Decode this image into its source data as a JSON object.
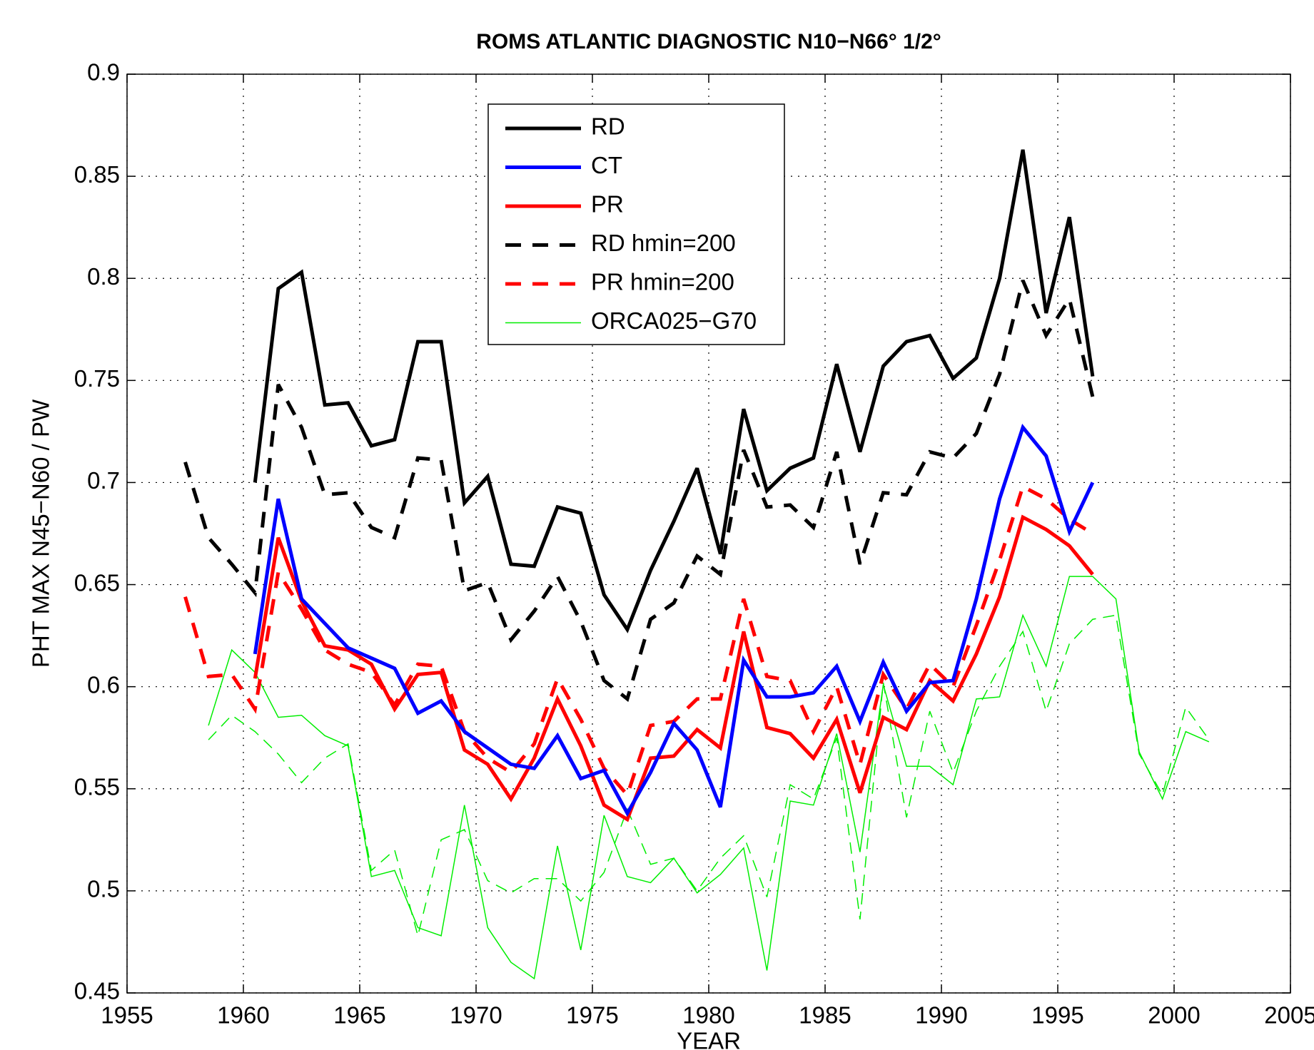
{
  "chart_data": {
    "type": "line",
    "title": "ROMS ATLANTIC DIAGNOSTIC N10−N66° 1/2°",
    "x_label": "YEAR",
    "y_label": "PHT MAX N45−N60 / PW",
    "x": [
      1957.5,
      1958.5,
      1959.5,
      1960.5,
      1961.5,
      1962.5,
      1963.5,
      1964.5,
      1965.5,
      1966.5,
      1967.5,
      1968.5,
      1969.5,
      1970.5,
      1971.5,
      1972.5,
      1973.5,
      1974.5,
      1975.5,
      1976.5,
      1977.5,
      1978.5,
      1979.5,
      1980.5,
      1981.5,
      1982.5,
      1983.5,
      1984.5,
      1985.5,
      1986.5,
      1987.5,
      1988.5,
      1989.5,
      1990.5,
      1991.5,
      1992.5,
      1993.5,
      1994.5,
      1995.5,
      1996.5,
      1997.5,
      1998.5,
      1999.5,
      2000.5,
      2001.5
    ],
    "series": [
      {
        "name": "RD",
        "color": "#000000",
        "linestyle": "solid",
        "linewidth": 5,
        "values": [
          null,
          null,
          null,
          0.7,
          0.795,
          0.803,
          0.738,
          0.739,
          0.718,
          0.721,
          0.769,
          0.769,
          0.69,
          0.703,
          0.66,
          0.659,
          0.688,
          0.685,
          0.645,
          0.628,
          0.657,
          0.681,
          0.707,
          0.665,
          0.736,
          0.696,
          0.707,
          0.712,
          0.758,
          0.715,
          0.757,
          0.769,
          0.772,
          0.751,
          0.761,
          0.8,
          0.863,
          0.783,
          0.83,
          0.752,
          null,
          null,
          null,
          null,
          null
        ]
      },
      {
        "name": "CT",
        "color": "#0000ff",
        "linestyle": "solid",
        "linewidth": 5,
        "values": [
          null,
          null,
          null,
          0.616,
          0.692,
          0.643,
          0.631,
          0.619,
          0.614,
          0.609,
          0.587,
          0.593,
          0.578,
          0.57,
          0.562,
          0.56,
          0.576,
          0.555,
          0.559,
          0.538,
          0.558,
          0.582,
          0.569,
          0.541,
          0.613,
          0.595,
          0.595,
          0.597,
          0.61,
          0.583,
          0.612,
          0.588,
          0.602,
          0.603,
          0.643,
          0.692,
          0.727,
          0.713,
          0.676,
          0.7,
          null,
          null,
          null,
          null,
          null
        ]
      },
      {
        "name": "PR",
        "color": "#ff0000",
        "linestyle": "solid",
        "linewidth": 5,
        "values": [
          null,
          null,
          null,
          0.604,
          0.673,
          0.642,
          0.62,
          0.618,
          0.611,
          0.589,
          0.606,
          0.607,
          0.569,
          0.562,
          0.545,
          0.565,
          0.594,
          0.571,
          0.542,
          0.535,
          0.565,
          0.566,
          0.579,
          0.57,
          0.627,
          0.58,
          0.577,
          0.565,
          0.584,
          0.548,
          0.585,
          0.579,
          0.603,
          0.593,
          0.616,
          0.644,
          0.683,
          0.677,
          0.669,
          0.655,
          null,
          null,
          null,
          null,
          null
        ]
      },
      {
        "name": "RD hmin=200",
        "color": "#000000",
        "linestyle": "dashed",
        "linewidth": 5,
        "values": [
          0.71,
          0.673,
          0.66,
          0.646,
          0.748,
          0.727,
          0.694,
          0.695,
          0.678,
          0.673,
          0.712,
          0.711,
          0.647,
          0.651,
          0.623,
          0.637,
          0.654,
          0.632,
          0.603,
          0.594,
          0.633,
          0.641,
          0.664,
          0.655,
          0.716,
          0.688,
          0.689,
          0.678,
          0.715,
          0.66,
          0.695,
          0.694,
          0.715,
          0.712,
          0.724,
          0.753,
          0.799,
          0.772,
          0.79,
          0.742,
          null,
          null,
          null,
          null,
          null
        ]
      },
      {
        "name": "PR hmin=200",
        "color": "#ff0000",
        "linestyle": "dashed",
        "linewidth": 5,
        "values": [
          0.644,
          0.605,
          0.606,
          0.589,
          0.656,
          0.638,
          0.618,
          0.611,
          0.607,
          0.591,
          0.611,
          0.61,
          0.578,
          0.565,
          0.558,
          0.572,
          0.604,
          0.584,
          0.56,
          0.547,
          0.581,
          0.583,
          0.594,
          0.594,
          0.643,
          0.605,
          0.603,
          0.578,
          0.6,
          0.562,
          0.606,
          0.589,
          0.611,
          0.6,
          0.63,
          0.662,
          0.698,
          0.692,
          0.682,
          0.675,
          null,
          null,
          null,
          null,
          null
        ]
      },
      {
        "name": "ORCA025−G70",
        "color": "#00ee00",
        "linestyle": "solid",
        "linewidth": 1.5,
        "values": [
          null,
          0.581,
          0.618,
          0.607,
          0.585,
          0.586,
          0.576,
          0.571,
          0.507,
          0.51,
          0.482,
          0.478,
          0.542,
          0.482,
          0.465,
          0.457,
          0.522,
          0.471,
          0.537,
          0.507,
          0.504,
          0.516,
          0.499,
          0.508,
          0.521,
          0.461,
          0.544,
          0.542,
          0.577,
          0.519,
          0.601,
          0.561,
          0.561,
          0.552,
          0.594,
          0.595,
          0.635,
          0.61,
          0.654,
          0.654,
          0.643,
          0.568,
          0.545,
          0.578,
          0.573
        ]
      },
      {
        "color": "#00ee00",
        "linestyle": "dashed",
        "linewidth": 1.5,
        "values": [
          null,
          0.574,
          0.586,
          0.578,
          0.567,
          0.553,
          0.565,
          0.572,
          0.51,
          0.52,
          0.478,
          0.525,
          0.53,
          0.505,
          0.499,
          0.506,
          0.506,
          0.495,
          0.509,
          0.54,
          0.513,
          0.516,
          0.5,
          0.516,
          0.527,
          0.497,
          0.552,
          0.545,
          0.575,
          0.486,
          0.602,
          0.536,
          0.588,
          0.558,
          0.588,
          0.61,
          0.627,
          0.588,
          0.621,
          0.633,
          0.635,
          0.567,
          0.547,
          0.59,
          0.574
        ]
      }
    ],
    "xlim": [
      1955,
      2005
    ],
    "ylim": [
      0.45,
      0.9
    ],
    "xticks": [
      1955,
      1960,
      1965,
      1970,
      1975,
      1980,
      1985,
      1990,
      1995,
      2000,
      2005
    ],
    "yticks": [
      0.45,
      0.5,
      0.55,
      0.6,
      0.65,
      0.7,
      0.75,
      0.8,
      0.85,
      0.9
    ],
    "grid": true,
    "legend": "top"
  }
}
